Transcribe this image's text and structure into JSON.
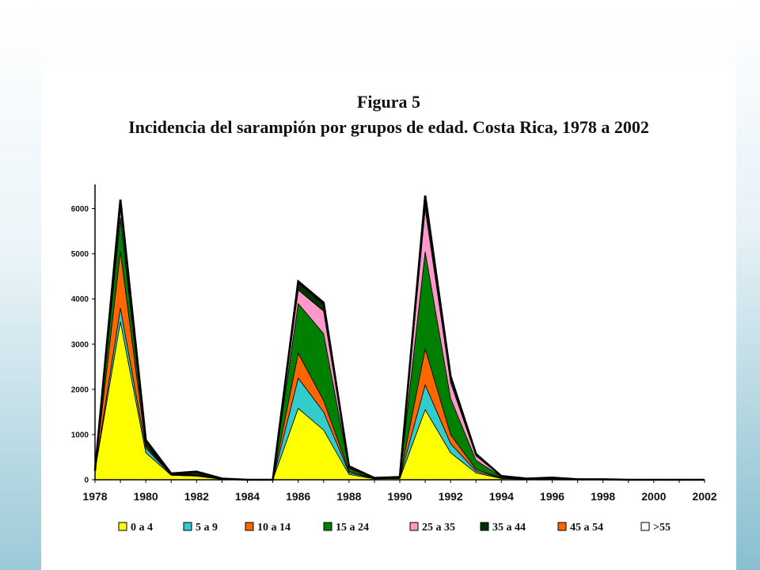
{
  "slide": {
    "colors": {
      "background": "#ffffff",
      "accent": "#88bfd0"
    }
  },
  "chart_data": {
    "type": "area",
    "stacked": true,
    "title": "Figura 5",
    "subtitle": "Incidencia  del sarampión por grupos de edad. Costa Rica, 1978 a 2002",
    "xlabel": "",
    "ylabel": "",
    "x": [
      1978,
      1979,
      1980,
      1981,
      1982,
      1983,
      1984,
      1985,
      1986,
      1987,
      1988,
      1989,
      1990,
      1991,
      1992,
      1993,
      1994,
      1995,
      1996,
      1997,
      1998,
      1999,
      2000,
      2001,
      2002
    ],
    "xticks": [
      "1978",
      "1980",
      "1982",
      "1984",
      "1986",
      "1988",
      "1990",
      "1992",
      "1994",
      "1996",
      "1998",
      "2000",
      "2002"
    ],
    "yticks": [
      "0",
      "1000",
      "2000",
      "3000",
      "4000",
      "5000",
      "6000"
    ],
    "ylim": [
      0,
      6500
    ],
    "xlim": [
      1978,
      2002
    ],
    "grid": false,
    "legend_position": "bottom",
    "series": [
      {
        "name": "0 a 4",
        "color": "#ffff00",
        "values": [
          200,
          3500,
          600,
          100,
          80,
          10,
          0,
          0,
          1580,
          1100,
          120,
          20,
          30,
          1550,
          600,
          150,
          30,
          10,
          20,
          5,
          5,
          0,
          0,
          0,
          0
        ]
      },
      {
        "name": "5 a 9",
        "color": "#33cccc",
        "values": [
          0,
          300,
          100,
          10,
          10,
          2,
          0,
          0,
          670,
          400,
          40,
          5,
          5,
          550,
          200,
          40,
          10,
          2,
          5,
          1,
          1,
          0,
          0,
          0,
          0
        ]
      },
      {
        "name": "10 a 14",
        "color": "#ff6600",
        "values": [
          0,
          1250,
          40,
          5,
          10,
          2,
          0,
          0,
          550,
          250,
          30,
          3,
          5,
          800,
          200,
          40,
          5,
          2,
          3,
          1,
          1,
          0,
          0,
          0,
          0
        ]
      },
      {
        "name": "15 a 24",
        "color": "#008000",
        "values": [
          0,
          750,
          40,
          5,
          20,
          3,
          0,
          0,
          1100,
          1480,
          60,
          5,
          10,
          2150,
          800,
          200,
          20,
          5,
          10,
          2,
          2,
          0,
          0,
          0,
          0
        ]
      },
      {
        "name": "25 a 35",
        "color": "#ff99cc",
        "values": [
          0,
          200,
          30,
          5,
          20,
          3,
          0,
          0,
          300,
          500,
          20,
          3,
          5,
          950,
          350,
          100,
          10,
          3,
          5,
          1,
          1,
          0,
          0,
          0,
          0
        ]
      },
      {
        "name": "35 a 44",
        "color": "#003300",
        "values": [
          0,
          150,
          50,
          10,
          30,
          5,
          0,
          0,
          150,
          150,
          20,
          2,
          5,
          250,
          100,
          30,
          5,
          2,
          3,
          1,
          1,
          0,
          0,
          0,
          0
        ]
      },
      {
        "name": "45 a 54",
        "color": "#ff6600",
        "values": [
          0,
          30,
          10,
          2,
          5,
          1,
          0,
          0,
          20,
          20,
          5,
          1,
          1,
          20,
          20,
          5,
          1,
          1,
          1,
          0,
          0,
          0,
          0,
          0,
          0
        ]
      },
      {
        "name": ">55",
        "color": "#ffffff",
        "values": [
          0,
          20,
          10,
          2,
          5,
          1,
          0,
          0,
          20,
          20,
          5,
          1,
          1,
          20,
          20,
          5,
          1,
          1,
          1,
          0,
          0,
          0,
          0,
          0,
          0
        ]
      }
    ]
  }
}
